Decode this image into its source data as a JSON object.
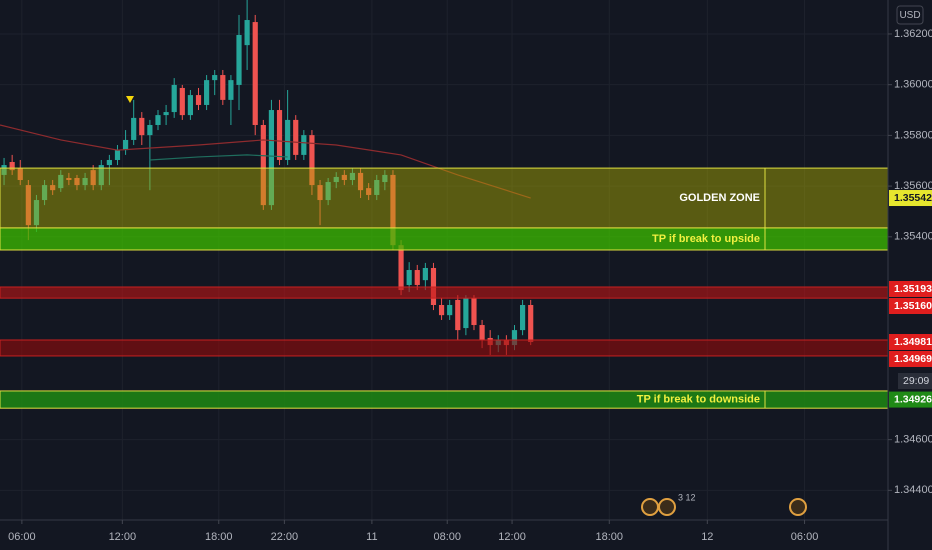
{
  "chart_data": {
    "type": "candlestick",
    "currency": "USD",
    "countdown": "29:09",
    "events_count": "3 12",
    "up_color": "#26a69a",
    "down_color": "#ef5350",
    "ylim": [
      1.34283,
      1.36334
    ],
    "yticks": [
      {
        "value": 1.344,
        "label": "1.34400"
      },
      {
        "value": 1.346,
        "label": "1.34600"
      },
      {
        "value": 1.354,
        "label": "1.35400"
      },
      {
        "value": 1.356,
        "label": "1.35600"
      },
      {
        "value": 1.358,
        "label": "1.35800"
      },
      {
        "value": 1.36,
        "label": "1.36000"
      },
      {
        "value": 1.362,
        "label": "1.36200"
      }
    ],
    "xlim": [
      -0.5,
      109.1
    ],
    "xticks": [
      {
        "value": 2.2,
        "label": "06:00"
      },
      {
        "value": 14.6,
        "label": "12:00"
      },
      {
        "value": 26.5,
        "label": "18:00"
      },
      {
        "value": 34.6,
        "label": "22:00"
      },
      {
        "value": 45.4,
        "label": "11"
      },
      {
        "value": 54.7,
        "label": "08:00"
      },
      {
        "value": 62.7,
        "label": "12:00"
      },
      {
        "value": 74.7,
        "label": "18:00"
      },
      {
        "value": 86.8,
        "label": "12"
      },
      {
        "value": 98.8,
        "label": "06:00"
      }
    ],
    "grid": true,
    "open": [
      1.35644,
      1.35695,
      1.35671,
      1.35604,
      1.35446,
      1.35545,
      1.35604,
      1.35592,
      1.35632,
      1.35632,
      1.35604,
      1.35663,
      1.35604,
      1.35683,
      1.35703,
      1.35742,
      1.35782,
      1.35869,
      1.35801,
      1.35841,
      1.3588,
      1.35892,
      1.35987,
      1.3588,
      1.35959,
      1.3592,
      1.36018,
      1.36038,
      1.3594,
      1.35999,
      1.36156,
      1.36247,
      1.35841,
      1.35525,
      1.359,
      1.35703,
      1.35861,
      1.35723,
      1.35801,
      1.35604,
      1.35545,
      1.35616,
      1.35644,
      1.35624,
      1.35652,
      1.35592,
      1.35565,
      1.35616,
      1.35644,
      1.35367,
      1.3521,
      1.35269,
      1.35229,
      1.35277,
      1.35131,
      1.35091,
      1.35151,
      1.3504,
      1.35158,
      1.35052,
      1.35001,
      1.34973,
      1.34993,
      1.34973,
      1.35032,
      1.35131
    ],
    "high": [
      1.35711,
      1.35723,
      1.35703,
      1.35624,
      1.35565,
      1.35624,
      1.35624,
      1.35663,
      1.35652,
      1.35644,
      1.35652,
      1.35683,
      1.35703,
      1.35723,
      1.35762,
      1.35821,
      1.3594,
      1.35892,
      1.35861,
      1.359,
      1.3592,
      1.36026,
      1.35999,
      1.35979,
      1.35987,
      1.36038,
      1.36058,
      1.36058,
      1.36038,
      1.36275,
      1.36334,
      1.36275,
      1.35861,
      1.3594,
      1.3594,
      1.35979,
      1.3588,
      1.35821,
      1.35821,
      1.35624,
      1.35632,
      1.35655,
      1.35663,
      1.35671,
      1.35671,
      1.35612,
      1.35644,
      1.35663,
      1.35663,
      1.35387,
      1.353,
      1.35289,
      1.35297,
      1.35297,
      1.35158,
      1.35151,
      1.3517,
      1.3517,
      1.3517,
      1.35072,
      1.35032,
      1.35012,
      1.35012,
      1.35052,
      1.35151,
      1.35151
    ],
    "low": [
      1.35604,
      1.35644,
      1.35604,
      1.35387,
      1.35419,
      1.35525,
      1.35565,
      1.35577,
      1.35604,
      1.35584,
      1.35584,
      1.35584,
      1.35584,
      1.35604,
      1.35683,
      1.35723,
      1.35762,
      1.35762,
      1.35584,
      1.35821,
      1.35841,
      1.35869,
      1.35861,
      1.35861,
      1.359,
      1.359,
      1.35959,
      1.3592,
      1.35841,
      1.359,
      1.36058,
      1.35801,
      1.35506,
      1.35506,
      1.35683,
      1.35683,
      1.35703,
      1.35703,
      1.35565,
      1.35446,
      1.35525,
      1.35592,
      1.35604,
      1.35604,
      1.35553,
      1.35545,
      1.35545,
      1.35584,
      1.35348,
      1.3517,
      1.35182,
      1.3519,
      1.3519,
      1.35111,
      1.35072,
      1.35072,
      1.34993,
      1.35012,
      1.35032,
      1.34961,
      1.34934,
      1.34945,
      1.34934,
      1.34953,
      1.35012,
      1.34973
    ],
    "close": [
      1.35683,
      1.35663,
      1.35624,
      1.35446,
      1.35545,
      1.35604,
      1.35584,
      1.35644,
      1.35624,
      1.35604,
      1.35632,
      1.35604,
      1.35683,
      1.35703,
      1.35742,
      1.35782,
      1.35869,
      1.35801,
      1.35841,
      1.3588,
      1.35892,
      1.35999,
      1.3588,
      1.35959,
      1.3592,
      1.36018,
      1.36038,
      1.3594,
      1.36018,
      1.36196,
      1.36255,
      1.35841,
      1.35525,
      1.359,
      1.35703,
      1.35861,
      1.35723,
      1.35801,
      1.35604,
      1.35545,
      1.35616,
      1.35636,
      1.35624,
      1.35652,
      1.35584,
      1.35565,
      1.35624,
      1.35644,
      1.35367,
      1.3519,
      1.35269,
      1.3521,
      1.35277,
      1.35131,
      1.35091,
      1.35131,
      1.35032,
      1.35158,
      1.35052,
      1.34993,
      1.34973,
      1.34993,
      1.34973,
      1.35032,
      1.35131,
      1.34985
    ],
    "series": [
      {
        "color": "#8e2b2e",
        "x": [
          -0.5,
          7,
          14,
          24,
          32,
          41,
          49,
          56,
          65
        ],
        "values": [
          1.35841,
          1.35782,
          1.35742,
          1.35762,
          1.35782,
          1.35762,
          1.35723,
          1.35644,
          1.35553
        ]
      },
      {
        "color": "#1f6e5e",
        "x": [
          18,
          24,
          30,
          35
        ],
        "values": [
          1.35703,
          1.35715,
          1.35723,
          1.35715
        ]
      }
    ],
    "zones": [
      {
        "text": "GOLDEN ZONE",
        "top": 1.35671,
        "bottom": 1.35435,
        "fill": "rgba(175,175,0,0.45)",
        "border": "#e0e040",
        "text_color": "#ffffff",
        "labels": [
          "1.35542"
        ],
        "label_bg": "#e6e62e",
        "label_color": "#131722"
      },
      {
        "text": "TP if break to upside",
        "top": 1.35435,
        "bottom": 1.35348,
        "fill": "rgba(60,190,0,0.75)",
        "border": "#e0e040",
        "text_color": "#f0f040",
        "labels": [],
        "label_bg": "#3aa80e",
        "label_color": "#ffffff"
      },
      {
        "top": 1.35202,
        "bottom": 1.35158,
        "fill": "rgba(190,20,20,0.6)",
        "border": "#c82020",
        "labels": [
          "1.35193",
          "1.35160"
        ],
        "label_bg": "#e01e1e",
        "label_color": "#ffffff"
      },
      {
        "top": 1.34993,
        "bottom": 1.3493,
        "fill": "rgba(150,10,10,0.6)",
        "border": "#c82020",
        "labels": [
          "1.34981",
          "1.34969"
        ],
        "label_bg": "#e01e1e",
        "label_color": "#ffffff"
      },
      {
        "text": "TP if break to downside",
        "top": 1.34792,
        "bottom": 1.34724,
        "fill": "rgba(30,130,20,0.9)",
        "border": "#e0e040",
        "text_color": "#f0f040",
        "labels": [
          "1.34926"
        ],
        "label_bg": "#1f8a16",
        "label_color": "#ffffff"
      }
    ]
  }
}
